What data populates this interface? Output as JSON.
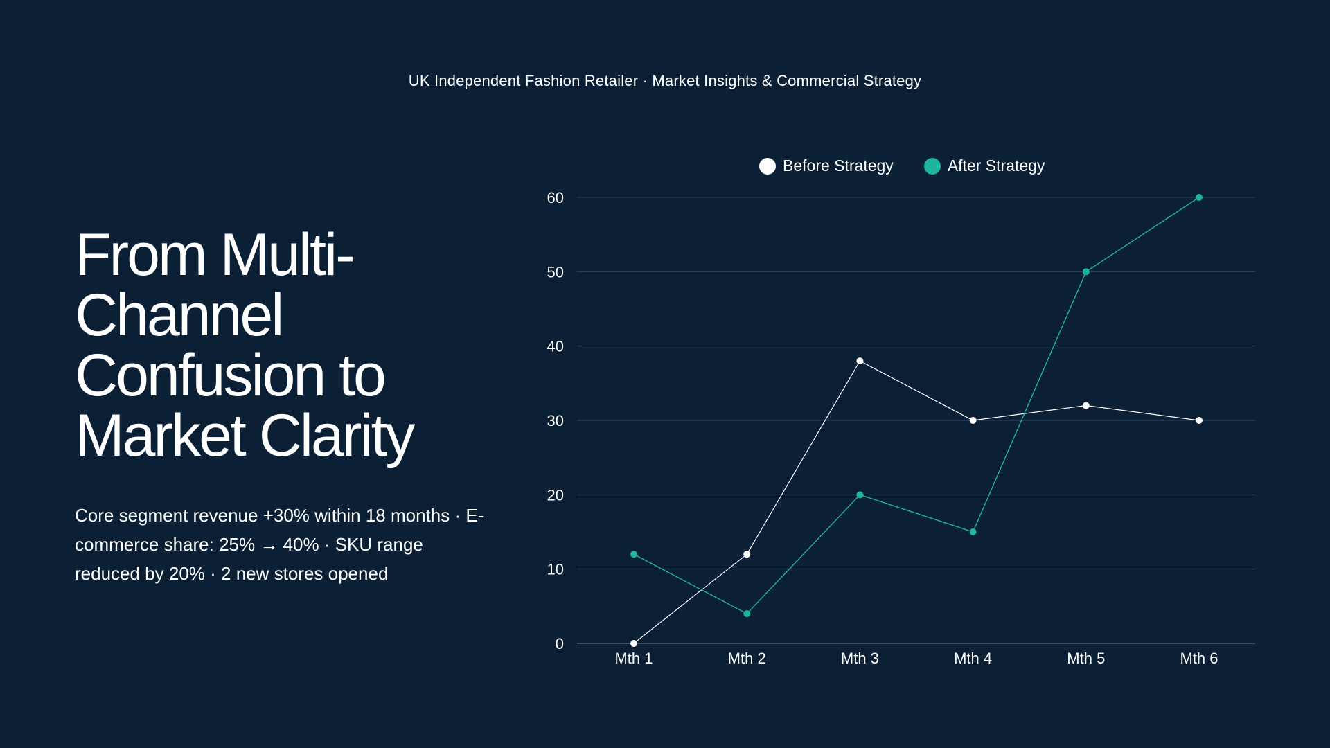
{
  "header": {
    "text": "UK Independent Fashion Retailer · Market Insights & Commercial Strategy"
  },
  "hero": {
    "title": "From Multi-Channel Confusion to Market Clarity",
    "summary": "Core segment revenue +30% within 18 months · E-commerce share: 25% → 40% · SKU range reduced by 20% · 2 new stores opened"
  },
  "chart_data": {
    "type": "line",
    "title": "",
    "xlabel": "",
    "ylabel": "",
    "categories": [
      "Mth 1",
      "Mth 2",
      "Mth 3",
      "Mth 4",
      "Mth 5",
      "Mth 6"
    ],
    "ylim": [
      0,
      60
    ],
    "yticks": [
      0,
      10,
      20,
      30,
      40,
      50,
      60
    ],
    "grid": true,
    "legend_position": "top",
    "series": [
      {
        "name": "Before Strategy",
        "color": "#ffffff",
        "values": [
          0,
          12,
          38,
          30,
          32,
          30
        ]
      },
      {
        "name": "After Strategy",
        "color": "#1fb59a",
        "values": [
          12,
          4,
          20,
          15,
          50,
          60
        ]
      }
    ]
  },
  "colors": {
    "background": "#0b1f35",
    "grid": "#2e4660",
    "axis_text": "#ffffff"
  }
}
